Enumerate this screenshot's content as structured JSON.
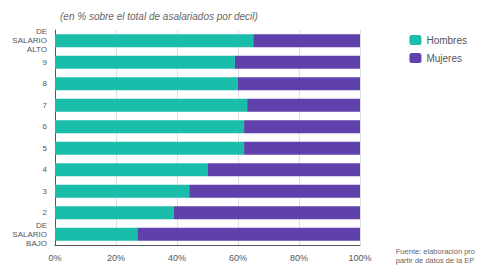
{
  "chart_data": {
    "type": "bar",
    "orientation": "horizontal",
    "stacked": true,
    "subtitle": "(en % sobre el total de asalariados por decil)",
    "categories": [
      "DE\nSALARIO\nBAJO",
      "2",
      "3",
      "4",
      "5",
      "6",
      "7",
      "8",
      "9",
      "DE\nSALARIO\nALTO"
    ],
    "series": [
      {
        "name": "Hombres",
        "color": "#1abcaa",
        "values": [
          27,
          39,
          44,
          50,
          62,
          62,
          63,
          60,
          59,
          65
        ]
      },
      {
        "name": "Mujeres",
        "color": "#6040aa",
        "values": [
          73,
          61,
          56,
          50,
          38,
          38,
          37,
          40,
          41,
          35
        ]
      }
    ],
    "xlim": [
      0,
      100
    ],
    "xticks": [
      {
        "value": 0,
        "label": "0%"
      },
      {
        "value": 20,
        "label": "20%"
      },
      {
        "value": 40,
        "label": "40%"
      },
      {
        "value": 60,
        "label": "60%"
      },
      {
        "value": 80,
        "label": "80%"
      },
      {
        "value": 100,
        "label": "100%"
      }
    ],
    "grid": true,
    "legend": "upper right",
    "annotations": [
      "Fuente: elaboración pro\npartir de datos de la EP"
    ]
  }
}
